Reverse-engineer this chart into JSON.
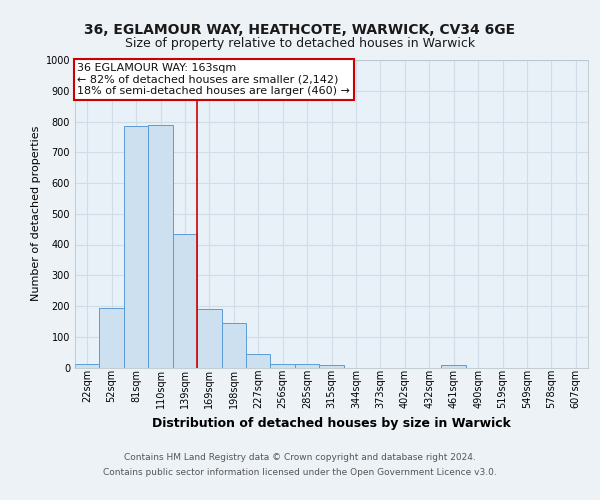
{
  "title1": "36, EGLAMOUR WAY, HEATHCOTE, WARWICK, CV34 6GE",
  "title2": "Size of property relative to detached houses in Warwick",
  "xlabel": "Distribution of detached houses by size in Warwick",
  "ylabel": "Number of detached properties",
  "categories": [
    "22sqm",
    "52sqm",
    "81sqm",
    "110sqm",
    "139sqm",
    "169sqm",
    "198sqm",
    "227sqm",
    "256sqm",
    "285sqm",
    "315sqm",
    "344sqm",
    "373sqm",
    "402sqm",
    "432sqm",
    "461sqm",
    "490sqm",
    "519sqm",
    "549sqm",
    "578sqm",
    "607sqm"
  ],
  "values": [
    12,
    195,
    785,
    790,
    435,
    190,
    145,
    45,
    12,
    10,
    8,
    0,
    0,
    0,
    0,
    8,
    0,
    0,
    0,
    0,
    0
  ],
  "bar_color": "#cce0f0",
  "bar_edge_color": "#5b9bd5",
  "vline_x": 4.5,
  "vline_color": "#cc0000",
  "annotation_box_text": "36 EGLAMOUR WAY: 163sqm\n← 82% of detached houses are smaller (2,142)\n18% of semi-detached houses are larger (460) →",
  "annotation_box_color": "#cc0000",
  "annotation_box_fill": "#ffffff",
  "footer1": "Contains HM Land Registry data © Crown copyright and database right 2024.",
  "footer2": "Contains public sector information licensed under the Open Government Licence v3.0.",
  "ylim": [
    0,
    1000
  ],
  "background_color": "#edf2f7",
  "plot_bg_color": "#e8f0f8",
  "grid_color": "#d0dce8",
  "title1_fontsize": 10,
  "title2_fontsize": 9,
  "xlabel_fontsize": 9,
  "ylabel_fontsize": 8,
  "tick_fontsize": 7,
  "footer_fontsize": 6.5,
  "annotation_fontsize": 8
}
